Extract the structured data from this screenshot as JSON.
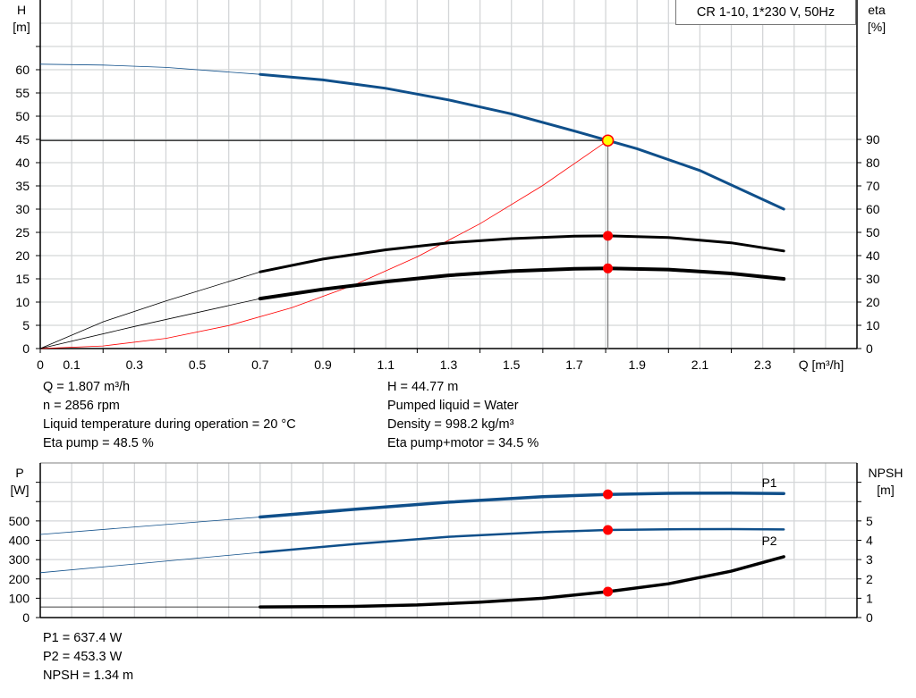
{
  "chart_data": [
    {
      "type": "line",
      "title": "CR 1-10, 1*230 V, 50Hz",
      "xlabel": "Q [m³/h]",
      "ylabel": "H\n[m]",
      "ylabel_parts": [
        "H",
        "[m]"
      ],
      "y2label_parts": [
        "eta",
        "[%]"
      ],
      "xlim": [
        0,
        2.6
      ],
      "ylim": [
        0,
        75
      ],
      "y2lim": [
        0,
        150
      ],
      "grid": true,
      "x_tick_labels": [
        "0",
        "0.1",
        "0.3",
        "0.5",
        "0.7",
        "0.9",
        "1.1",
        "1.3",
        "1.5",
        "1.7",
        "1.9",
        "2.1",
        "2.3"
      ],
      "y_tick_labels": [
        "0",
        "5",
        "10",
        "15",
        "20",
        "25",
        "30",
        "35",
        "40",
        "45",
        "50",
        "55",
        "60"
      ],
      "y2_tick_labels": [
        "0",
        "10",
        "20",
        "30",
        "40",
        "50",
        "60",
        "70",
        "80",
        "90"
      ],
      "duty_range_start": 0.7,
      "series": [
        {
          "axis": "H",
          "color": "#0f4f8a",
          "points": [
            [
              0,
              61.2
            ],
            [
              0.2,
              61
            ],
            [
              0.4,
              60.5
            ],
            [
              0.7,
              59
            ],
            [
              0.9,
              57.8
            ],
            [
              1.1,
              56
            ],
            [
              1.3,
              53.5
            ],
            [
              1.5,
              50.5
            ],
            [
              1.7,
              46.8
            ],
            [
              1.807,
              44.77
            ],
            [
              1.9,
              43
            ],
            [
              2.1,
              38.3
            ],
            [
              2.367,
              30
            ]
          ]
        },
        {
          "axis": "eta",
          "color": "#000000",
          "points": [
            [
              0,
              0
            ],
            [
              0.2,
              11.5
            ],
            [
              0.4,
              20.5
            ],
            [
              0.7,
              33
            ],
            [
              0.9,
              38.5
            ],
            [
              1.1,
              42.5
            ],
            [
              1.3,
              45.5
            ],
            [
              1.5,
              47.3
            ],
            [
              1.7,
              48.4
            ],
            [
              1.807,
              48.5
            ],
            [
              2.0,
              47.8
            ],
            [
              2.2,
              45.5
            ],
            [
              2.367,
              42
            ]
          ]
        },
        {
          "axis": "eta",
          "color": "#000000",
          "thick": true,
          "points": [
            [
              0,
              0
            ],
            [
              0.3,
              9.5
            ],
            [
              0.7,
              21.5
            ],
            [
              0.9,
              25.5
            ],
            [
              1.1,
              28.8
            ],
            [
              1.3,
              31.5
            ],
            [
              1.5,
              33.3
            ],
            [
              1.7,
              34.3
            ],
            [
              1.807,
              34.5
            ],
            [
              2.0,
              34
            ],
            [
              2.2,
              32.3
            ],
            [
              2.367,
              30
            ]
          ]
        }
      ],
      "system_curve": {
        "color": "#ff0000",
        "points": [
          [
            0,
            0
          ],
          [
            0.2,
            0.55
          ],
          [
            0.4,
            2.19
          ],
          [
            0.6,
            4.94
          ],
          [
            0.8,
            8.77
          ],
          [
            1.0,
            13.71
          ],
          [
            1.2,
            19.74
          ],
          [
            1.4,
            26.87
          ],
          [
            1.6,
            35.1
          ],
          [
            1.807,
            44.77
          ]
        ]
      },
      "operating_point": {
        "Q": 1.807,
        "H": 44.77,
        "eta_pump": 48.5,
        "eta_total": 34.5,
        "marker_color": "#ffff00",
        "dot_color": "#ff0000"
      }
    },
    {
      "type": "line",
      "ylabel_parts": [
        "P",
        "[W]"
      ],
      "y2label_parts": [
        "NPSH",
        "[m]"
      ],
      "xlim": [
        0,
        2.6
      ],
      "ylim": [
        0,
        800
      ],
      "y2lim": [
        0,
        8
      ],
      "grid": true,
      "y_tick_labels": [
        "0",
        "100",
        "200",
        "300",
        "400",
        "500"
      ],
      "y2_tick_labels": [
        "0",
        "1",
        "2",
        "3",
        "4",
        "5"
      ],
      "series": [
        {
          "name": "P1",
          "axis": "P",
          "color": "#0f4f8a",
          "thick": true,
          "points": [
            [
              0,
              430
            ],
            [
              0.7,
              520
            ],
            [
              1.0,
              560
            ],
            [
              1.3,
              597
            ],
            [
              1.6,
              625
            ],
            [
              1.807,
              637.4
            ],
            [
              2.0,
              643
            ],
            [
              2.2,
              644
            ],
            [
              2.367,
              642
            ]
          ]
        },
        {
          "name": "P2",
          "axis": "P",
          "color": "#0f4f8a",
          "points": [
            [
              0,
              232
            ],
            [
              0.7,
              337
            ],
            [
              1.0,
              380
            ],
            [
              1.3,
              418
            ],
            [
              1.6,
              442
            ],
            [
              1.807,
              453.3
            ],
            [
              2.0,
              457
            ],
            [
              2.2,
              458
            ],
            [
              2.367,
              456
            ]
          ]
        },
        {
          "axis": "NPSH",
          "color": "#000000",
          "thick": true,
          "points": [
            [
              0,
              0.55
            ],
            [
              0.7,
              0.55
            ],
            [
              1.0,
              0.58
            ],
            [
              1.2,
              0.65
            ],
            [
              1.4,
              0.8
            ],
            [
              1.6,
              1.0
            ],
            [
              1.807,
              1.34
            ],
            [
              2.0,
              1.75
            ],
            [
              2.2,
              2.4
            ],
            [
              2.367,
              3.15
            ]
          ]
        }
      ],
      "operating_point": {
        "Q": 1.807,
        "P1": 637.4,
        "P2": 453.3,
        "NPSH": 1.34
      }
    }
  ],
  "info_top": {
    "q": "Q = 1.807 m³/h",
    "n": "n = 2856 rpm",
    "temp": "Liquid temperature during operation = 20 °C",
    "eta_pump": "Eta pump = 48.5 %",
    "h": "H = 44.77 m",
    "liquid": "Pumped liquid = Water",
    "density": "Density = 998.2 kg/m³",
    "eta_total": "Eta pump+motor = 34.5 %"
  },
  "info_bottom": {
    "p1": "P1 = 637.4 W",
    "p2": "P2 = 453.3 W",
    "npsh": "NPSH = 1.34 m"
  }
}
